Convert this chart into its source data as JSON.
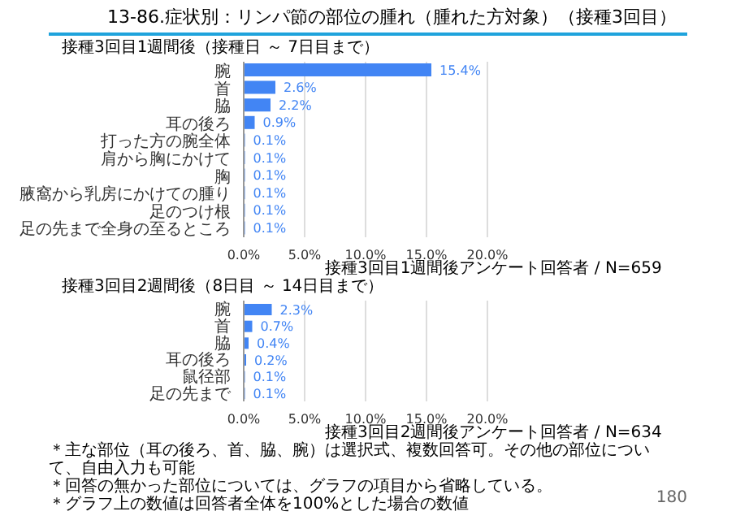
{
  "chart_data": [
    {
      "type": "bar",
      "orientation": "horizontal",
      "title": "13-86.症状別：リンパ節の部位の腫れ（腫れた方対象）（接種3回目）",
      "subtitle": "接種3回目1週間後（接種日 ～ 7日目まで）",
      "categories": [
        "腕",
        "首",
        "脇",
        "耳の後ろ",
        "打った方の腕全体",
        "肩から胸にかけて",
        "胸",
        "腋窩から乳房にかけての腫り",
        "足のつけ根",
        "足の先まで全身の至るところ"
      ],
      "values": [
        15.4,
        2.6,
        2.2,
        0.9,
        0.1,
        0.1,
        0.1,
        0.1,
        0.1,
        0.1
      ],
      "value_labels": [
        "15.4%",
        "2.6%",
        "2.2%",
        "0.9%",
        "0.1%",
        "0.1%",
        "0.1%",
        "0.1%",
        "0.1%",
        "0.1%"
      ],
      "color": "#4285f4",
      "xlim": [
        0,
        20
      ],
      "xticks": [
        {
          "value": 0,
          "label": "0.0%"
        },
        {
          "value": 5,
          "label": "5.0%"
        },
        {
          "value": 10,
          "label": "10.0%"
        },
        {
          "value": 15,
          "label": "15.0%"
        },
        {
          "value": 20,
          "label": "20.0%"
        }
      ],
      "grid": "x",
      "annotations": [
        "接種3回目1週間後アンケート回答者 / N=659"
      ]
    },
    {
      "type": "bar",
      "orientation": "horizontal",
      "subtitle": "接種3回目2週間後（8日目 ～ 14日目まで）",
      "categories": [
        "腕",
        "首",
        "脇",
        "耳の後ろ",
        "鼠径部",
        "足の先まで"
      ],
      "values": [
        2.3,
        0.7,
        0.4,
        0.2,
        0.1,
        0.1
      ],
      "value_labels": [
        "2.3%",
        "0.7%",
        "0.4%",
        "0.2%",
        "0.1%",
        "0.1%"
      ],
      "color": "#4285f4",
      "xlim": [
        0,
        20
      ],
      "xticks": [
        {
          "value": 0,
          "label": "0.0%"
        },
        {
          "value": 5,
          "label": "5.0%"
        },
        {
          "value": 10,
          "label": "10.0%"
        },
        {
          "value": 15,
          "label": "15.0%"
        },
        {
          "value": 20,
          "label": "20.0%"
        }
      ],
      "grid": "x",
      "annotations": [
        "接種3回目2週間後アンケート回答者 / N=634",
        "＊主な部位（耳の後ろ、首、脇、腕）は選択式、複数回答可。その他の部位について、自由入力も可能",
        "＊回答の無かった部位については、グラフの項目から省略している。",
        "＊グラフ上の数値は回答者全体を100%とした場合の数値",
        "180"
      ]
    }
  ]
}
